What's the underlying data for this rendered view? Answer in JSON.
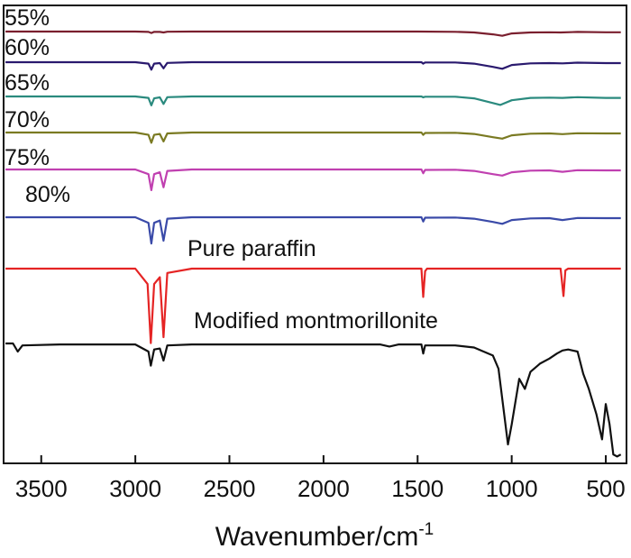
{
  "chart_data": {
    "type": "line",
    "title": "",
    "xlabel": "Wavenumber/cm",
    "xlabel_superscript": "-1",
    "ylabel": "",
    "xlim": [
      3700,
      390
    ],
    "x_reversed": true,
    "xticks": [
      3500,
      3000,
      2500,
      2000,
      1500,
      1000,
      500
    ],
    "y_axis_ticks_shown": false,
    "series": [
      {
        "name": "55%",
        "color": "#7a1f2e",
        "label_position": "top-left",
        "points": [
          [
            3690,
            0
          ],
          [
            3000,
            0
          ],
          [
            2930,
            0.8
          ],
          [
            2915,
            3
          ],
          [
            2900,
            0.6
          ],
          [
            2870,
            0.8
          ],
          [
            2850,
            2
          ],
          [
            2830,
            0.4
          ],
          [
            2700,
            0
          ],
          [
            1500,
            0
          ],
          [
            1300,
            0.5
          ],
          [
            1200,
            2
          ],
          [
            1100,
            6
          ],
          [
            1050,
            9
          ],
          [
            1000,
            4
          ],
          [
            900,
            2
          ],
          [
            800,
            1.5
          ],
          [
            740,
            2
          ],
          [
            650,
            0.8
          ],
          [
            500,
            1.5
          ],
          [
            420,
            1.5
          ]
        ]
      },
      {
        "name": "60%",
        "color": "#2a1a6e",
        "label_position": "top-left",
        "points": [
          [
            3690,
            0
          ],
          [
            3000,
            0
          ],
          [
            2930,
            3
          ],
          [
            2915,
            16
          ],
          [
            2900,
            3
          ],
          [
            2870,
            2
          ],
          [
            2850,
            13
          ],
          [
            2830,
            1.5
          ],
          [
            2700,
            0
          ],
          [
            1480,
            0
          ],
          [
            1470,
            3
          ],
          [
            1460,
            0.5
          ],
          [
            1300,
            0.5
          ],
          [
            1200,
            3
          ],
          [
            1100,
            10
          ],
          [
            1050,
            14
          ],
          [
            1000,
            6
          ],
          [
            900,
            2.5
          ],
          [
            800,
            2
          ],
          [
            730,
            2.5
          ],
          [
            650,
            1
          ],
          [
            500,
            2
          ],
          [
            420,
            2
          ]
        ]
      },
      {
        "name": "65%",
        "color": "#2a8a7e",
        "label_position": "top-left",
        "points": [
          [
            3690,
            0
          ],
          [
            3000,
            0
          ],
          [
            2930,
            3
          ],
          [
            2915,
            19
          ],
          [
            2900,
            4
          ],
          [
            2870,
            2
          ],
          [
            2850,
            16
          ],
          [
            2830,
            1.5
          ],
          [
            2700,
            0
          ],
          [
            1480,
            0
          ],
          [
            1470,
            2
          ],
          [
            1460,
            0.5
          ],
          [
            1300,
            0.5
          ],
          [
            1200,
            4
          ],
          [
            1100,
            14
          ],
          [
            1060,
            18
          ],
          [
            1000,
            8
          ],
          [
            900,
            3
          ],
          [
            800,
            2.5
          ],
          [
            730,
            3
          ],
          [
            650,
            1.5
          ],
          [
            500,
            3
          ],
          [
            420,
            3
          ]
        ]
      },
      {
        "name": "70%",
        "color": "#7a7a22",
        "label_position": "top-left",
        "points": [
          [
            3690,
            0
          ],
          [
            3000,
            0
          ],
          [
            2930,
            5
          ],
          [
            2915,
            22
          ],
          [
            2900,
            5
          ],
          [
            2870,
            3
          ],
          [
            2850,
            19
          ],
          [
            2830,
            2
          ],
          [
            2700,
            0
          ],
          [
            1480,
            0
          ],
          [
            1470,
            5
          ],
          [
            1460,
            1
          ],
          [
            1300,
            0.5
          ],
          [
            1200,
            3
          ],
          [
            1100,
            10
          ],
          [
            1050,
            13
          ],
          [
            1000,
            6
          ],
          [
            900,
            2.5
          ],
          [
            800,
            2
          ],
          [
            730,
            3.5
          ],
          [
            650,
            1.5
          ],
          [
            500,
            2
          ],
          [
            420,
            2
          ]
        ]
      },
      {
        "name": "75%",
        "color": "#c040b0",
        "label_position": "top-left",
        "points": [
          [
            3690,
            0
          ],
          [
            3000,
            0
          ],
          [
            2930,
            10
          ],
          [
            2915,
            44
          ],
          [
            2900,
            10
          ],
          [
            2870,
            6
          ],
          [
            2850,
            38
          ],
          [
            2830,
            3
          ],
          [
            2700,
            0
          ],
          [
            1480,
            0
          ],
          [
            1470,
            8
          ],
          [
            1460,
            1
          ],
          [
            1300,
            0.5
          ],
          [
            1200,
            3
          ],
          [
            1100,
            10
          ],
          [
            1050,
            13
          ],
          [
            1000,
            6
          ],
          [
            900,
            2.5
          ],
          [
            800,
            2
          ],
          [
            730,
            5
          ],
          [
            650,
            1.5
          ],
          [
            500,
            2
          ],
          [
            420,
            2
          ]
        ]
      },
      {
        "name": "80%",
        "color": "#3a4aa8",
        "label_position": "top-left",
        "points": [
          [
            3690,
            0
          ],
          [
            3000,
            0
          ],
          [
            2930,
            12
          ],
          [
            2915,
            56
          ],
          [
            2900,
            12
          ],
          [
            2870,
            7
          ],
          [
            2850,
            50
          ],
          [
            2830,
            3
          ],
          [
            2700,
            0
          ],
          [
            1480,
            0
          ],
          [
            1470,
            9
          ],
          [
            1460,
            1
          ],
          [
            1300,
            0.5
          ],
          [
            1200,
            3
          ],
          [
            1100,
            10
          ],
          [
            1050,
            14
          ],
          [
            1000,
            6
          ],
          [
            900,
            2.5
          ],
          [
            800,
            2
          ],
          [
            730,
            6
          ],
          [
            650,
            1.5
          ],
          [
            500,
            2
          ],
          [
            420,
            2
          ]
        ]
      },
      {
        "name": "Pure paraffin",
        "color": "#e52424",
        "label_position": "center",
        "points": [
          [
            3690,
            0
          ],
          [
            3000,
            0
          ],
          [
            2935,
            18
          ],
          [
            2918,
            87
          ],
          [
            2900,
            18
          ],
          [
            2870,
            10
          ],
          [
            2850,
            80
          ],
          [
            2830,
            5
          ],
          [
            2700,
            0
          ],
          [
            1480,
            0
          ],
          [
            1470,
            33
          ],
          [
            1460,
            3
          ],
          [
            1450,
            0
          ],
          [
            740,
            0
          ],
          [
            725,
            32
          ],
          [
            715,
            2
          ],
          [
            700,
            0
          ],
          [
            420,
            0
          ]
        ]
      },
      {
        "name": "Modified montmorillonite",
        "color": "#111111",
        "label_position": "center",
        "points": [
          [
            3690,
            0
          ],
          [
            3650,
            0
          ],
          [
            3625,
            8
          ],
          [
            3600,
            2
          ],
          [
            3400,
            1
          ],
          [
            3000,
            1
          ],
          [
            2930,
            8
          ],
          [
            2918,
            22
          ],
          [
            2900,
            6
          ],
          [
            2870,
            5
          ],
          [
            2850,
            17
          ],
          [
            2830,
            2
          ],
          [
            2700,
            1
          ],
          [
            1700,
            1
          ],
          [
            1650,
            3
          ],
          [
            1600,
            1
          ],
          [
            1480,
            1
          ],
          [
            1470,
            10
          ],
          [
            1460,
            2
          ],
          [
            1300,
            2
          ],
          [
            1200,
            4
          ],
          [
            1100,
            12
          ],
          [
            1070,
            25
          ],
          [
            1040,
            70
          ],
          [
            1020,
            100
          ],
          [
            1000,
            80
          ],
          [
            960,
            35
          ],
          [
            930,
            45
          ],
          [
            900,
            28
          ],
          [
            850,
            20
          ],
          [
            800,
            15
          ],
          [
            760,
            10
          ],
          [
            730,
            7
          ],
          [
            700,
            6
          ],
          [
            650,
            8
          ],
          [
            620,
            30
          ],
          [
            590,
            45
          ],
          [
            550,
            70
          ],
          [
            520,
            95
          ],
          [
            500,
            60
          ],
          [
            480,
            80
          ],
          [
            460,
            110
          ],
          [
            440,
            112
          ],
          [
            420,
            110
          ]
        ]
      }
    ]
  }
}
